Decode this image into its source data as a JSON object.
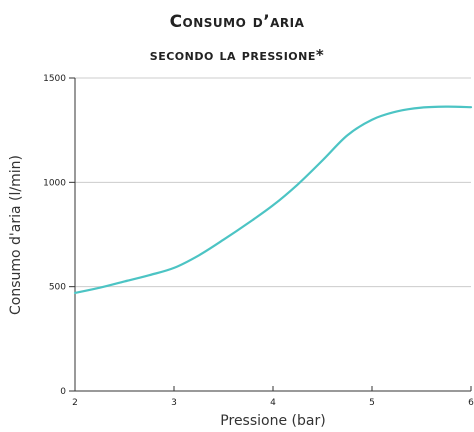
{
  "chart_data": {
    "type": "line",
    "title_line1": "Consumo d’aria",
    "title_line2": "secondo la pressione*",
    "xlabel": "Pressione (bar)",
    "ylabel": "Consumo d'aria (l/min)",
    "xlim": [
      2,
      6
    ],
    "ylim": [
      0,
      1500
    ],
    "xticks": [
      "2",
      "3",
      "4",
      "5",
      "6"
    ],
    "yticks": [
      "0",
      "500",
      "1000",
      "1500"
    ],
    "grid": "horizontal",
    "colors": {
      "line": "#4cc4c4",
      "axis": "#333333",
      "grid": "#cccccc"
    },
    "series": [
      {
        "x": [
          2,
          2.25,
          2.5,
          2.75,
          3,
          3.25,
          3.5,
          3.75,
          4,
          4.25,
          4.5,
          4.75,
          5,
          5.25,
          5.5,
          5.75,
          6
        ],
        "y": [
          470,
          495,
          525,
          555,
          590,
          650,
          725,
          805,
          890,
          990,
          1105,
          1225,
          1300,
          1340,
          1358,
          1363,
          1360
        ]
      }
    ]
  }
}
